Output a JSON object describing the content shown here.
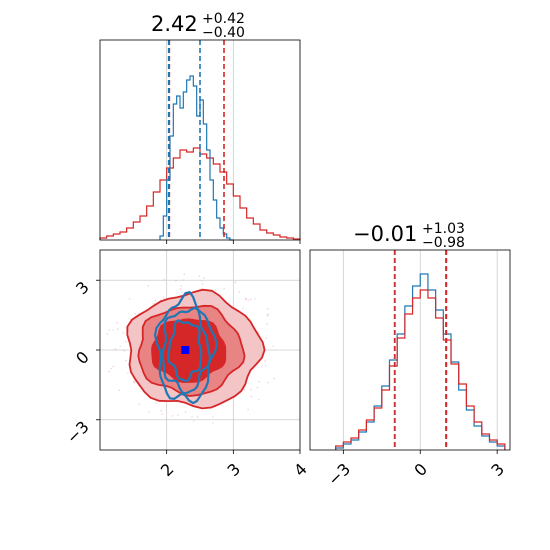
{
  "colors": {
    "blue": "#1f77b4",
    "red": "#d62728",
    "red_fill_light": "#f4c5c6",
    "red_fill_mid": "#e98485",
    "red_fill_dark": "#d62728",
    "grid": "#cccccc",
    "spine": "#000000",
    "marker": "#0000ff"
  },
  "chart_data": [
    {
      "type": "histogram",
      "panel": "top-left",
      "title": {
        "value": "2.42",
        "upper": "+0.42",
        "lower": "−0.40"
      },
      "xlim": [
        1,
        4
      ],
      "quantile_lines": {
        "blue": [
          2.03,
          2.5
        ],
        "red": [
          2.04,
          2.86
        ]
      },
      "series": [
        {
          "name": "",
          "color": "#1f77b4",
          "bin_edges": [
            1.9,
            1.95,
            2.0,
            2.05,
            2.1,
            2.15,
            2.2,
            2.25,
            2.3,
            2.35,
            2.4,
            2.45,
            2.5,
            2.55,
            2.6,
            2.65,
            2.7,
            2.75,
            2.8,
            2.85,
            2.9,
            2.95,
            3.0
          ],
          "values": [
            0.02,
            0.12,
            0.3,
            0.52,
            0.68,
            0.72,
            0.66,
            0.74,
            0.8,
            0.82,
            0.77,
            0.62,
            0.7,
            0.58,
            0.45,
            0.3,
            0.2,
            0.11,
            0.06,
            0.03,
            0.01,
            0.0
          ]
        },
        {
          "name": "",
          "color": "#d62728",
          "bin_edges": [
            1.0,
            1.1,
            1.2,
            1.3,
            1.4,
            1.5,
            1.6,
            1.7,
            1.8,
            1.9,
            2.0,
            2.1,
            2.2,
            2.3,
            2.4,
            2.5,
            2.6,
            2.7,
            2.8,
            2.9,
            3.0,
            3.1,
            3.2,
            3.3,
            3.4,
            3.5,
            3.6,
            3.7,
            3.8,
            3.9,
            4.0
          ],
          "values": [
            0.01,
            0.02,
            0.03,
            0.04,
            0.06,
            0.09,
            0.12,
            0.17,
            0.24,
            0.3,
            0.36,
            0.41,
            0.45,
            0.44,
            0.46,
            0.43,
            0.41,
            0.38,
            0.34,
            0.28,
            0.22,
            0.16,
            0.11,
            0.08,
            0.05,
            0.035,
            0.025,
            0.015,
            0.01,
            0.005
          ]
        }
      ],
      "ylim": [
        0,
        1.0
      ],
      "tick_values": [
        2,
        3,
        4
      ]
    },
    {
      "type": "contour",
      "panel": "bottom-left",
      "xlim": [
        1,
        4
      ],
      "ylim": [
        -4.3,
        4.3
      ],
      "xtick_labels": [
        "2",
        "3",
        "4"
      ],
      "xtick_values": [
        2,
        3,
        4
      ],
      "ytick_labels": [
        "−3",
        "0",
        "3"
      ],
      "ytick_values": [
        -3,
        0,
        3
      ],
      "blue_contours": [
        {
          "cx": 2.28,
          "cy": 0.0,
          "rx": 0.42,
          "ry": 2.2
        },
        {
          "cx": 2.28,
          "cy": 0.0,
          "rx": 0.34,
          "ry": 1.75
        },
        {
          "cx": 2.28,
          "cy": 0.0,
          "rx": 0.24,
          "ry": 1.25
        }
      ],
      "red_contours": [
        {
          "cx": 2.4,
          "cy": 0.0,
          "rx": 1.0,
          "ry": 2.45
        },
        {
          "cx": 2.35,
          "cy": 0.0,
          "rx": 0.78,
          "ry": 1.9
        },
        {
          "cx": 2.33,
          "cy": 0.0,
          "rx": 0.55,
          "ry": 1.35
        }
      ],
      "marker": {
        "x": 2.28,
        "y": 0.0
      }
    },
    {
      "type": "histogram",
      "panel": "bottom-right",
      "title": {
        "value": "−0.01",
        "upper": "+1.03",
        "lower": "−0.98"
      },
      "xlim": [
        -4.3,
        3.5
      ],
      "quantile_lines": {
        "blue": [
          -1.0,
          1.0
        ],
        "red": [
          -0.99,
          1.02
        ]
      },
      "series": [
        {
          "name": "",
          "color": "#1f77b4",
          "bin_edges": [
            -3.3,
            -3.0,
            -2.7,
            -2.4,
            -2.1,
            -1.8,
            -1.5,
            -1.2,
            -0.9,
            -0.6,
            -0.3,
            0.0,
            0.3,
            0.6,
            0.9,
            1.2,
            1.5,
            1.8,
            2.1,
            2.4,
            2.7,
            3.0,
            3.3
          ],
          "values": [
            0.01,
            0.03,
            0.05,
            0.09,
            0.14,
            0.22,
            0.32,
            0.45,
            0.58,
            0.72,
            0.82,
            0.88,
            0.8,
            0.7,
            0.58,
            0.44,
            0.3,
            0.2,
            0.12,
            0.07,
            0.04,
            0.02
          ]
        },
        {
          "name": "",
          "color": "#d62728",
          "bin_edges": [
            -3.3,
            -3.0,
            -2.7,
            -2.4,
            -2.1,
            -1.8,
            -1.5,
            -1.2,
            -0.9,
            -0.6,
            -0.3,
            0.0,
            0.3,
            0.6,
            0.9,
            1.2,
            1.5,
            1.8,
            2.1,
            2.4,
            2.7,
            3.0,
            3.3
          ],
          "values": [
            0.02,
            0.04,
            0.06,
            0.1,
            0.15,
            0.21,
            0.3,
            0.42,
            0.56,
            0.68,
            0.76,
            0.8,
            0.76,
            0.66,
            0.55,
            0.43,
            0.33,
            0.22,
            0.14,
            0.08,
            0.05,
            0.03
          ]
        }
      ],
      "ylim": [
        0,
        1.0
      ],
      "xtick_labels": [
        "−3",
        "0",
        "3"
      ],
      "xtick_values": [
        -3,
        0,
        3
      ]
    }
  ]
}
